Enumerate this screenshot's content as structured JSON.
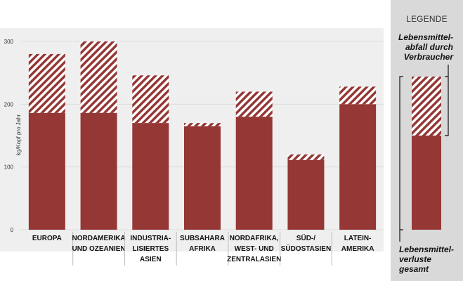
{
  "chart_data": {
    "type": "bar",
    "title": "",
    "xlabel": "",
    "ylabel": "kg/Kopf pro Jahr",
    "ylim": [
      0,
      300
    ],
    "yticks": [
      "0",
      "100",
      "200",
      "300"
    ],
    "categories": [
      [
        "EUROPA"
      ],
      [
        "NORDAMERIKA",
        "UND OZEANIEN"
      ],
      [
        "INDUSTRIA-",
        "LISIERTES",
        "ASIEN"
      ],
      [
        "SUBSAHARA",
        "AFRIKA"
      ],
      [
        "NORDAFRIKA,",
        "WEST- UND",
        "ZENTRALASIEN"
      ],
      [
        "SÜD-/",
        "SÜDOSTASIEN"
      ],
      [
        "LATEIN-",
        "AMERIKA"
      ]
    ],
    "series": [
      {
        "name": "Lebensmittelverluste gesamt",
        "values": [
          280,
          300,
          246,
          170,
          220,
          120,
          228
        ]
      },
      {
        "values": [
          186,
          186,
          170,
          165,
          180,
          111,
          200
        ]
      }
    ],
    "grid": true,
    "legend": "right",
    "colors": {
      "solid": "#953735",
      "hatch_bg": "#ffffff",
      "panel": "#efefef",
      "grid": "#dcdcdc"
    }
  },
  "legend": {
    "title": "LEGENDE",
    "top_label": [
      "Lebensmittel-",
      "abfall durch",
      "Verbraucher"
    ],
    "bottom_label": [
      "Lebensmittel-",
      "verluste",
      "gesamt"
    ]
  }
}
